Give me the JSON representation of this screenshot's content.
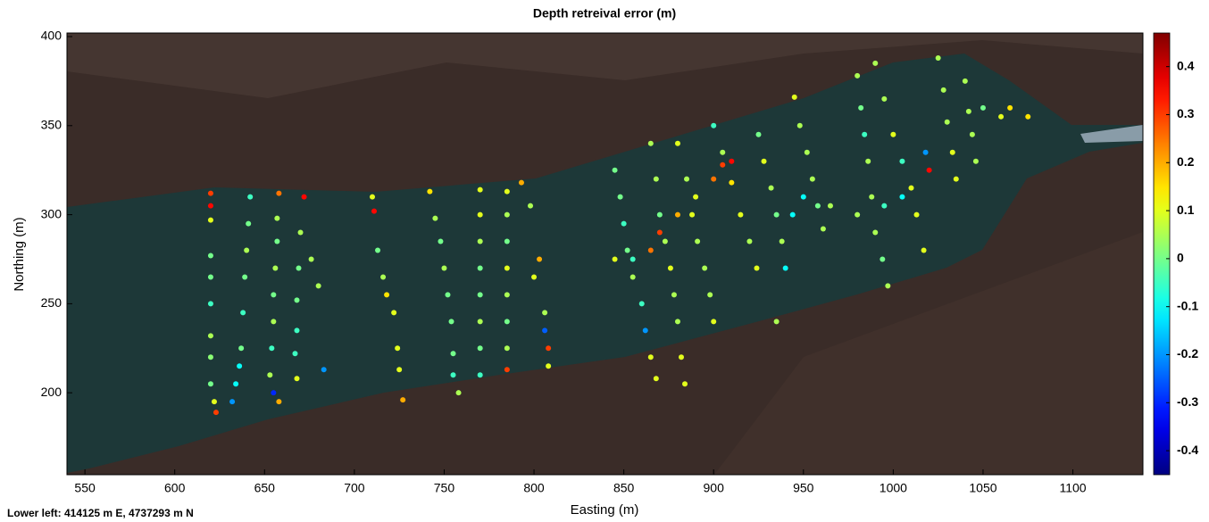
{
  "chart_data": {
    "type": "scatter",
    "title": "Depth retreival error (m)",
    "x_label": "Easting (m)",
    "y_label": "Northing (m)",
    "annotation": "Lower left: 414125 m E, 4737293 m N",
    "colormap": "jet",
    "x": [
      620,
      620,
      620,
      620,
      620,
      620,
      620,
      620,
      620,
      622,
      623,
      642,
      641,
      640,
      639,
      638,
      637,
      636,
      634,
      632,
      658,
      657,
      657,
      656,
      655,
      655,
      654,
      653,
      655,
      658,
      672,
      670,
      669,
      668,
      668,
      667,
      668,
      676,
      680,
      683,
      710,
      711,
      713,
      716,
      718,
      722,
      724,
      725,
      727,
      742,
      745,
      748,
      750,
      752,
      754,
      755,
      755,
      758,
      770,
      770,
      770,
      770,
      770,
      770,
      770,
      770,
      785,
      785,
      785,
      785,
      785,
      785,
      785,
      785,
      793,
      798,
      803,
      800,
      806,
      806,
      808,
      808,
      845,
      855,
      865,
      870,
      880,
      890,
      900,
      905,
      910,
      845,
      848,
      850,
      852,
      855,
      860,
      862,
      865,
      868,
      865,
      868,
      870,
      873,
      876,
      878,
      880,
      882,
      884,
      880,
      885,
      888,
      891,
      895,
      898,
      900,
      900,
      905,
      910,
      915,
      920,
      924,
      925,
      928,
      932,
      935,
      938,
      940,
      935,
      945,
      948,
      952,
      955,
      958,
      961,
      944,
      980,
      982,
      984,
      986,
      988,
      990,
      994,
      997,
      990,
      995,
      1000,
      1005,
      1010,
      1013,
      1017,
      1025,
      1028,
      1030,
      1033,
      1035,
      1020,
      1018,
      1040,
      1042,
      1044,
      1046,
      1050,
      1060,
      1065,
      1075,
      950,
      965,
      980,
      995,
      1005
    ],
    "y": [
      312,
      305,
      297,
      277,
      265,
      250,
      232,
      220,
      205,
      195,
      189,
      310,
      295,
      280,
      265,
      245,
      225,
      215,
      205,
      195,
      312,
      298,
      285,
      270,
      255,
      240,
      225,
      210,
      200,
      195,
      310,
      290,
      270,
      252,
      235,
      222,
      208,
      275,
      260,
      213,
      310,
      302,
      280,
      265,
      255,
      245,
      225,
      213,
      196,
      313,
      298,
      285,
      270,
      255,
      240,
      222,
      210,
      200,
      314,
      300,
      285,
      270,
      255,
      240,
      225,
      210,
      313,
      300,
      285,
      270,
      255,
      240,
      225,
      213,
      318,
      305,
      275,
      265,
      245,
      235,
      225,
      215,
      275,
      275,
      280,
      290,
      300,
      310,
      320,
      328,
      330,
      325,
      310,
      295,
      280,
      265,
      250,
      235,
      220,
      208,
      340,
      320,
      300,
      285,
      270,
      255,
      240,
      220,
      205,
      340,
      320,
      300,
      285,
      270,
      255,
      240,
      350,
      335,
      318,
      300,
      285,
      270,
      345,
      330,
      315,
      300,
      285,
      270,
      240,
      366,
      350,
      335,
      320,
      305,
      292,
      300,
      378,
      360,
      345,
      330,
      310,
      290,
      275,
      260,
      385,
      365,
      345,
      330,
      315,
      300,
      280,
      388,
      370,
      352,
      335,
      320,
      325,
      335,
      375,
      358,
      345,
      330,
      360,
      355,
      360,
      355,
      310,
      305,
      300,
      305,
      310
    ],
    "values": [
      0.3,
      0.35,
      0.1,
      0,
      0,
      -0.05,
      0.05,
      0.02,
      0,
      0.1,
      0.3,
      -0.05,
      0,
      0.05,
      0,
      -0.05,
      0,
      -0.1,
      -0.1,
      -0.2,
      0.25,
      0.05,
      0,
      0.05,
      0,
      0.05,
      -0.05,
      0.05,
      -0.3,
      0.2,
      0.35,
      0.05,
      0,
      0,
      -0.05,
      -0.05,
      0.1,
      0.05,
      0.05,
      -0.2,
      0.1,
      0.35,
      0,
      0.05,
      0.15,
      0.1,
      0.1,
      0.1,
      0.2,
      0.15,
      0.05,
      0,
      0.05,
      0,
      0,
      0,
      -0.05,
      0.05,
      0.1,
      0.1,
      0.05,
      0,
      0,
      0.05,
      0,
      -0.05,
      0.1,
      0.05,
      0,
      0.1,
      0.05,
      0,
      0.05,
      0.3,
      0.2,
      0.05,
      0.2,
      0.1,
      0.05,
      -0.25,
      0.3,
      0.1,
      0.1,
      -0.05,
      0.25,
      0.3,
      0.2,
      0.1,
      0.25,
      0.3,
      0.35,
      0,
      0,
      -0.05,
      0,
      0.05,
      -0.05,
      -0.2,
      0.1,
      0.1,
      0.05,
      0.05,
      0,
      0.05,
      0.1,
      0.05,
      0.05,
      0.1,
      0.1,
      0.1,
      0.05,
      0.1,
      0.05,
      0.05,
      0.05,
      0.1,
      -0.05,
      0.05,
      0.15,
      0.1,
      0.05,
      0.1,
      0,
      0.1,
      0.05,
      0,
      0.05,
      -0.1,
      0.05,
      0.1,
      0.05,
      0.05,
      0.05,
      0,
      0.05,
      -0.1,
      0.05,
      0,
      -0.05,
      0.05,
      0.05,
      0.05,
      0,
      0.05,
      0.05,
      0.05,
      0.1,
      -0.05,
      0.1,
      0.1,
      0.1,
      0.05,
      0.05,
      0.05,
      0.1,
      0.1,
      0.35,
      -0.2,
      0.05,
      0.05,
      0.05,
      0.05,
      0,
      0.1,
      0.15,
      0.15,
      -0.1,
      0.05,
      0.05,
      -0.05,
      -0.1
    ],
    "xlim": [
      540,
      1139
    ],
    "ylim": [
      154,
      402
    ],
    "xticks": [
      550,
      600,
      650,
      700,
      750,
      800,
      850,
      900,
      950,
      1000,
      1050,
      1100
    ],
    "yticks": [
      200,
      250,
      300,
      350,
      400
    ],
    "clim": [
      -0.45,
      0.47
    ],
    "cticks": [
      -0.4,
      -0.3,
      -0.2,
      -0.1,
      0,
      0.1,
      0.2,
      0.3,
      0.4
    ]
  }
}
